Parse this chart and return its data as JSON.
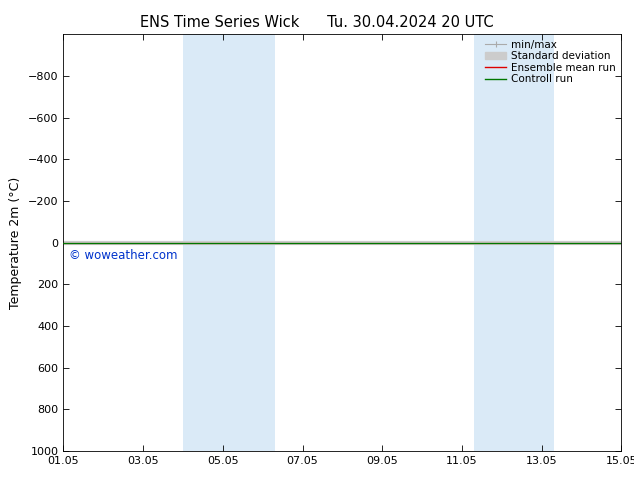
{
  "title": "ENS Time Series Wick      Tu. 30.04.2024 20 UTC",
  "ylabel": "Temperature 2m (°C)",
  "ylim_top": -1000,
  "ylim_bottom": 1000,
  "yticks": [
    -800,
    -600,
    -400,
    -200,
    0,
    200,
    400,
    600,
    800,
    1000
  ],
  "xtick_labels": [
    "01.05",
    "03.05",
    "05.05",
    "07.05",
    "09.05",
    "11.05",
    "13.05",
    "15.05"
  ],
  "xtick_positions": [
    0,
    2,
    4,
    6,
    8,
    10,
    12,
    14
  ],
  "xlim": [
    0,
    14
  ],
  "shaded_bands": [
    {
      "x_start": 3.0,
      "x_end": 5.3
    },
    {
      "x_start": 10.3,
      "x_end": 12.3
    }
  ],
  "band_color": "#daeaf7",
  "line_y": 0,
  "green_line_color": "#007700",
  "red_line_color": "#dd0000",
  "gray_line_color": "#aaaaaa",
  "light_gray_color": "#cccccc",
  "watermark_text": "© woweather.com",
  "watermark_color": "#0033cc",
  "background_color": "#ffffff",
  "legend_labels": [
    "min/max",
    "Standard deviation",
    "Ensemble mean run",
    "Controll run"
  ],
  "legend_colors": [
    "#aaaaaa",
    "#cccccc",
    "#dd0000",
    "#007700"
  ],
  "font_size": 8,
  "title_font_size": 10.5,
  "ylabel_fontsize": 9
}
